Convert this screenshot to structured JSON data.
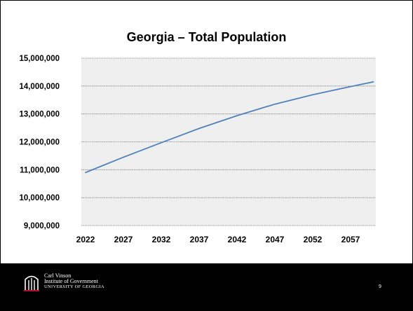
{
  "slide": {
    "org_line1": "Carl Vinson",
    "org_line2": "Institute of Government",
    "org_line3": "UNIVERSITY OF GEORGIA",
    "page_number": "9",
    "logo_icon": "arch-icon",
    "logo_accent": "#ba0c2f"
  },
  "chart_data": {
    "type": "line",
    "title": "Georgia – Total Population",
    "xlabel": "",
    "ylabel": "",
    "x_ticks": [
      "2022",
      "2027",
      "2032",
      "2037",
      "2042",
      "2047",
      "2052",
      "2057"
    ],
    "y_ticks": [
      "9,000,000",
      "10,000,000",
      "11,000,000",
      "12,000,000",
      "13,000,000",
      "14,000,000",
      "15,000,000"
    ],
    "ylim": [
      9000000,
      15000000
    ],
    "xlim": [
      2022,
      2060
    ],
    "grid": true,
    "plot_background": "#efefef",
    "series": [
      {
        "color": "#4f81bd",
        "x": [
          2022,
          2027,
          2032,
          2037,
          2042,
          2047,
          2052,
          2057,
          2060
        ],
        "values": [
          10900000,
          11450000,
          11970000,
          12480000,
          12940000,
          13350000,
          13690000,
          13980000,
          14150000
        ]
      }
    ]
  }
}
